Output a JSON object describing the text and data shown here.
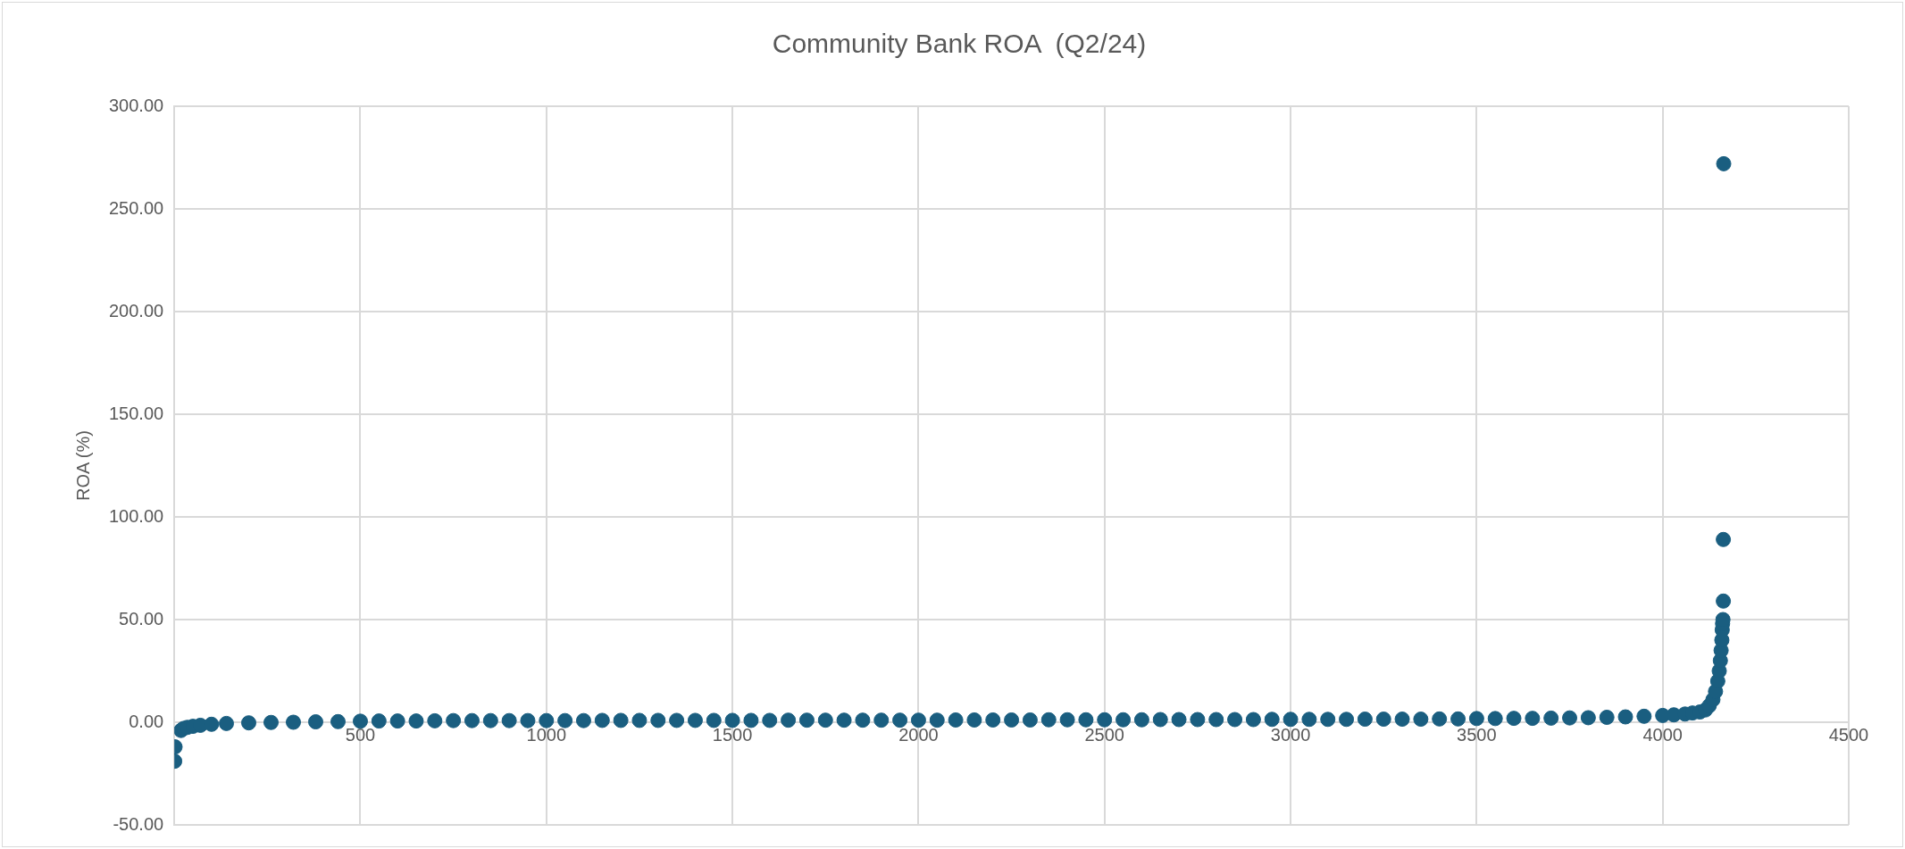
{
  "chart_data": {
    "type": "scatter",
    "title": "Community Bank ROA  (Q2/24)",
    "ylabel": "ROA (%)",
    "x": [
      1,
      2,
      18,
      25,
      35,
      50,
      70,
      100,
      140,
      200,
      260,
      320,
      380,
      440,
      500,
      550,
      600,
      650,
      700,
      750,
      800,
      850,
      900,
      950,
      1000,
      1050,
      1100,
      1150,
      1200,
      1250,
      1300,
      1350,
      1400,
      1450,
      1500,
      1550,
      1600,
      1650,
      1700,
      1750,
      1800,
      1850,
      1900,
      1950,
      2000,
      2050,
      2100,
      2150,
      2200,
      2250,
      2300,
      2350,
      2400,
      2450,
      2500,
      2550,
      2600,
      2650,
      2700,
      2750,
      2800,
      2850,
      2900,
      2950,
      3000,
      3050,
      3100,
      3150,
      3200,
      3250,
      3300,
      3350,
      3400,
      3450,
      3500,
      3550,
      3600,
      3650,
      3700,
      3750,
      3800,
      3850,
      3900,
      3950,
      4000,
      4030,
      4060,
      4080,
      4100,
      4115,
      4125,
      4135,
      4142,
      4148,
      4152,
      4155,
      4157,
      4159,
      4160,
      4161,
      4162,
      4163,
      4163,
      4164
    ],
    "series": [
      {
        "color": "#1a5e80",
        "values": [
          -19,
          -12,
          -4,
          -3,
          -2.5,
          -2,
          -1.5,
          -1,
          -0.6,
          -0.3,
          -0.1,
          0,
          0.2,
          0.3,
          0.5,
          0.6,
          0.6,
          0.6,
          0.7,
          0.8,
          0.8,
          0.8,
          0.8,
          0.8,
          0.8,
          0.8,
          0.8,
          0.9,
          0.9,
          0.9,
          0.9,
          0.9,
          0.9,
          0.9,
          0.9,
          0.9,
          0.9,
          1.0,
          1.0,
          1.0,
          1.0,
          1.0,
          1.0,
          1.0,
          1.0,
          1.0,
          1.1,
          1.1,
          1.1,
          1.1,
          1.1,
          1.2,
          1.2,
          1.2,
          1.2,
          1.2,
          1.2,
          1.3,
          1.3,
          1.3,
          1.3,
          1.3,
          1.3,
          1.4,
          1.4,
          1.4,
          1.4,
          1.4,
          1.5,
          1.5,
          1.5,
          1.5,
          1.6,
          1.6,
          1.8,
          1.8,
          1.9,
          1.9,
          2.0,
          2.1,
          2.2,
          2.4,
          2.6,
          2.9,
          3.3,
          3.6,
          4,
          4.5,
          5,
          6,
          8,
          11,
          15,
          20,
          25,
          30,
          35,
          40,
          45,
          48,
          50,
          59,
          89,
          272
        ]
      }
    ],
    "xlim": [
      0,
      4500
    ],
    "xticks": [
      {
        "value": 0,
        "label": null
      },
      500,
      1000,
      1500,
      2000,
      2500,
      3000,
      3500,
      4000,
      4500
    ],
    "ylim": [
      -50,
      300
    ],
    "yticks": [
      {
        "value": -50,
        "label": "-50.00"
      },
      {
        "value": 0,
        "label": "0.00"
      },
      {
        "value": 50,
        "label": "50.00"
      },
      {
        "value": 100,
        "label": "100.00"
      },
      {
        "value": 150,
        "label": "150.00"
      },
      {
        "value": 200,
        "label": "200.00"
      },
      {
        "value": 250,
        "label": "250.00"
      },
      {
        "value": 300,
        "label": "300.00"
      }
    ],
    "grid": true,
    "marker": "circle",
    "legend": false
  }
}
